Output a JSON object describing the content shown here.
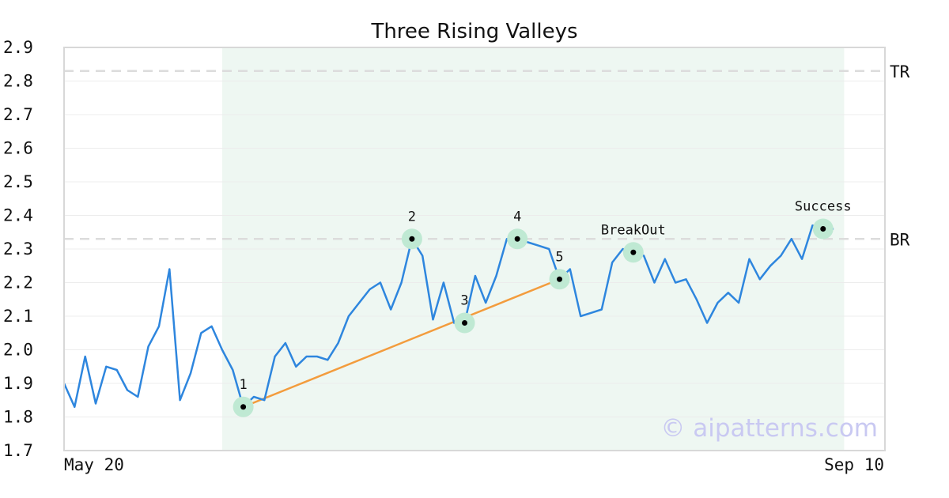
{
  "chart_data": {
    "type": "line",
    "title": "Three Rising Valleys",
    "ylim": [
      1.7,
      2.9
    ],
    "yticks": [
      "1.7",
      "1.8",
      "1.9",
      "2.0",
      "2.1",
      "2.2",
      "2.3",
      "2.4",
      "2.5",
      "2.6",
      "2.7",
      "2.8",
      "2.9"
    ],
    "xtick_labels": [
      {
        "index": 0,
        "label": "May 20"
      },
      {
        "index": 72,
        "label": "Sep 10"
      }
    ],
    "grid": true,
    "shaded_region": {
      "start_index": 15,
      "end_index": 74
    },
    "series": [
      {
        "values": [
          1.9,
          1.83,
          1.98,
          1.84,
          1.95,
          1.94,
          1.88,
          1.86,
          2.01,
          2.07,
          2.24,
          1.85,
          1.93,
          2.05,
          2.07,
          2.0,
          1.94,
          1.83,
          1.86,
          1.85,
          1.98,
          2.02,
          1.95,
          1.98,
          1.98,
          1.97,
          2.02,
          2.1,
          2.14,
          2.18,
          2.2,
          2.12,
          2.2,
          2.33,
          2.28,
          2.09,
          2.2,
          2.08,
          2.08,
          2.22,
          2.14,
          2.22,
          2.33,
          2.33,
          2.32,
          2.31,
          2.3,
          2.21,
          2.24,
          2.1,
          2.11,
          2.12,
          2.26,
          2.3,
          2.29,
          2.28,
          2.2,
          2.27,
          2.2,
          2.21,
          2.15,
          2.08,
          2.14,
          2.17,
          2.14,
          2.27,
          2.21,
          2.25,
          2.28,
          2.33,
          2.27,
          2.37,
          2.36,
          2.36
        ],
        "color": "#2e86de"
      }
    ],
    "levels": [
      {
        "label": "TR",
        "value": 2.83
      },
      {
        "label": "BR",
        "value": 2.33
      }
    ],
    "trendline": {
      "from_index": 17,
      "to_index": 47,
      "color": "#f39c3d"
    },
    "markers": [
      {
        "label": "1",
        "index": 17,
        "value": 1.83
      },
      {
        "label": "2",
        "index": 33,
        "value": 2.33
      },
      {
        "label": "3",
        "index": 38,
        "value": 2.08
      },
      {
        "label": "4",
        "index": 43,
        "value": 2.33
      },
      {
        "label": "5",
        "index": 47,
        "value": 2.21
      },
      {
        "label": "BreakOut",
        "index": 54,
        "value": 2.29
      },
      {
        "label": "Success",
        "index": 72,
        "value": 2.36
      }
    ],
    "watermark": "© aipatterns.com"
  }
}
